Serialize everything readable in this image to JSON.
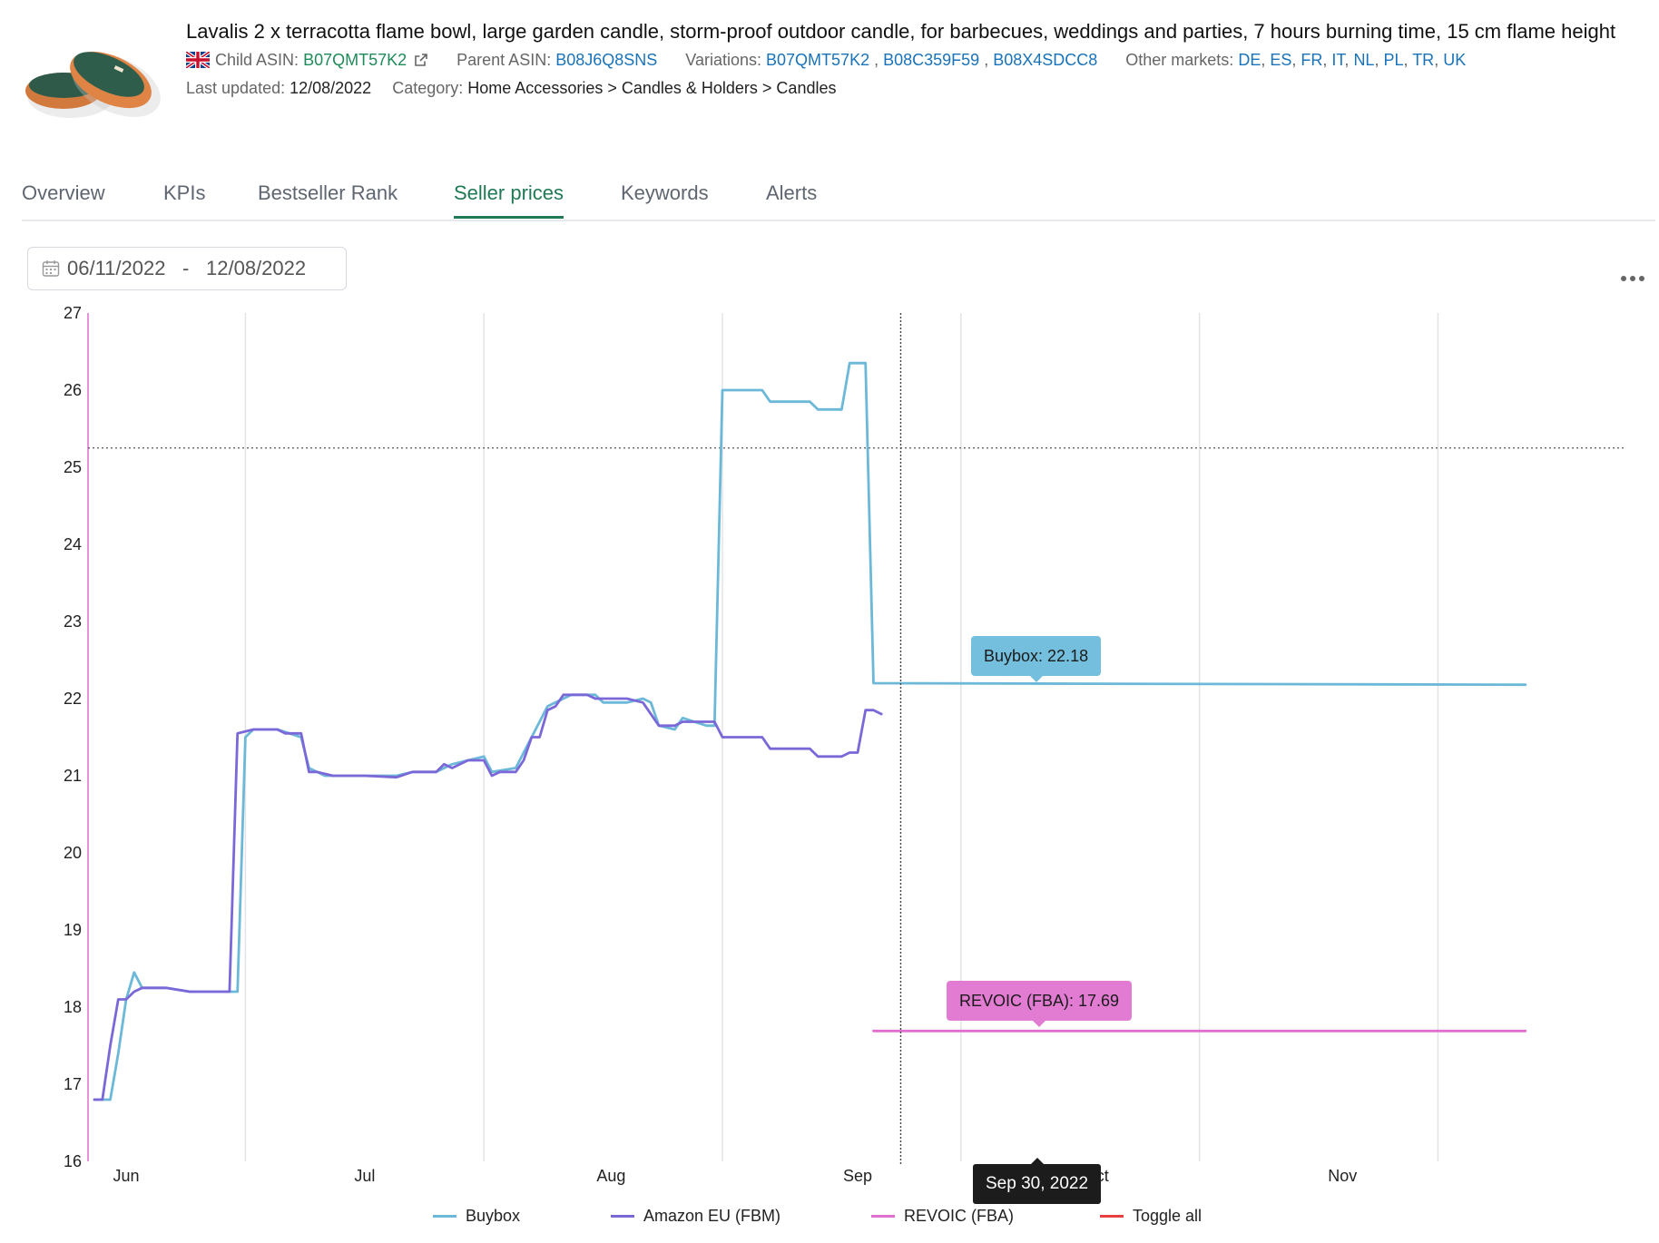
{
  "product": {
    "title": "Lavalis 2 x terracotta flame bowl, large garden candle, storm-proof outdoor candle, for barbecues, weddings and parties, 7 hours burning time, 15 cm flame height",
    "child_asin_label": "Child ASIN:",
    "child_asin": "B07QMT57K2",
    "parent_asin_label": "Parent ASIN:",
    "parent_asin": "B08J6Q8SNS",
    "variations_label": "Variations:",
    "variations": [
      "B07QMT57K2",
      "B08C359F59",
      "B08X4SDCC8"
    ],
    "other_markets_label": "Other markets:",
    "other_markets": [
      "DE",
      "ES",
      "FR",
      "IT",
      "NL",
      "PL",
      "TR",
      "UK"
    ],
    "last_updated_label": "Last updated:",
    "last_updated": "12/08/2022",
    "category_label": "Category:",
    "category": "Home Accessories > Candles & Holders > Candles"
  },
  "tabs": [
    "Overview",
    "KPIs",
    "Bestseller Rank",
    "Seller prices",
    "Keywords",
    "Alerts"
  ],
  "active_tab": "Seller prices",
  "date_range": {
    "start": "06/11/2022",
    "separator": "-",
    "end": "12/08/2022"
  },
  "tooltips": {
    "buybox": "Buybox: 22.18",
    "revoic": "REVOIC (FBA): 17.69",
    "date": "Sep 30, 2022"
  },
  "chart_data": {
    "type": "line",
    "ylim": [
      16,
      27
    ],
    "yticks": [
      16,
      17,
      18,
      19,
      20,
      21,
      22,
      23,
      24,
      25,
      26,
      27
    ],
    "xlabels": [
      "Jun",
      "Jul",
      "Aug",
      "Sep",
      "Oct",
      "Nov"
    ],
    "reference_line": 25.25,
    "hover_date": "Sep 30, 2022",
    "series": [
      {
        "name": "Buybox",
        "color": "#6cb8d8",
        "points": [
          [
            "06-11",
            16.8
          ],
          [
            "06-13",
            16.8
          ],
          [
            "06-14",
            17.4
          ],
          [
            "06-15",
            18.1
          ],
          [
            "06-16",
            18.45
          ],
          [
            "06-17",
            18.25
          ],
          [
            "06-20",
            18.25
          ],
          [
            "06-23",
            18.2
          ],
          [
            "06-29",
            18.2
          ],
          [
            "06-30",
            21.5
          ],
          [
            "07-01",
            21.6
          ],
          [
            "07-04",
            21.6
          ],
          [
            "07-07",
            21.5
          ],
          [
            "07-08",
            21.1
          ],
          [
            "07-10",
            21.0
          ],
          [
            "07-15",
            21.0
          ],
          [
            "07-19",
            21.0
          ],
          [
            "07-21",
            21.05
          ],
          [
            "07-24",
            21.05
          ],
          [
            "07-26",
            21.15
          ],
          [
            "07-28",
            21.2
          ],
          [
            "07-30",
            21.25
          ],
          [
            "07-31",
            21.05
          ],
          [
            "08-03",
            21.1
          ],
          [
            "08-04",
            21.3
          ],
          [
            "08-05",
            21.5
          ],
          [
            "08-07",
            21.9
          ],
          [
            "08-10",
            22.05
          ],
          [
            "08-13",
            22.05
          ],
          [
            "08-14",
            21.95
          ],
          [
            "08-17",
            21.95
          ],
          [
            "08-19",
            22.0
          ],
          [
            "08-20",
            21.95
          ],
          [
            "08-21",
            21.65
          ],
          [
            "08-23",
            21.6
          ],
          [
            "08-24",
            21.75
          ],
          [
            "08-27",
            21.65
          ],
          [
            "08-28",
            21.65
          ],
          [
            "08-29",
            26.0
          ],
          [
            "09-03",
            26.0
          ],
          [
            "09-04",
            25.85
          ],
          [
            "09-07",
            25.85
          ],
          [
            "09-09",
            25.85
          ],
          [
            "09-10",
            25.75
          ],
          [
            "09-13",
            25.75
          ],
          [
            "09-14",
            26.35
          ],
          [
            "09-16",
            26.35
          ],
          [
            "09-17",
            22.2
          ],
          [
            "12-08",
            22.18
          ]
        ]
      },
      {
        "name": "Amazon EU (FBM)",
        "color": "#7b68d8",
        "points": [
          [
            "06-11",
            16.8
          ],
          [
            "06-12",
            16.8
          ],
          [
            "06-13",
            17.5
          ],
          [
            "06-14",
            18.1
          ],
          [
            "06-15",
            18.1
          ],
          [
            "06-16",
            18.2
          ],
          [
            "06-17",
            18.25
          ],
          [
            "06-20",
            18.25
          ],
          [
            "06-23",
            18.2
          ],
          [
            "06-28",
            18.2
          ],
          [
            "06-29",
            21.55
          ],
          [
            "07-01",
            21.6
          ],
          [
            "07-04",
            21.6
          ],
          [
            "07-05",
            21.55
          ],
          [
            "07-07",
            21.55
          ],
          [
            "07-08",
            21.05
          ],
          [
            "07-09",
            21.05
          ],
          [
            "07-11",
            21.0
          ],
          [
            "07-15",
            21.0
          ],
          [
            "07-19",
            20.98
          ],
          [
            "07-21",
            21.05
          ],
          [
            "07-24",
            21.05
          ],
          [
            "07-25",
            21.15
          ],
          [
            "07-26",
            21.1
          ],
          [
            "07-28",
            21.2
          ],
          [
            "07-30",
            21.2
          ],
          [
            "07-31",
            21.0
          ],
          [
            "08-01",
            21.05
          ],
          [
            "08-03",
            21.05
          ],
          [
            "08-04",
            21.2
          ],
          [
            "08-05",
            21.5
          ],
          [
            "08-06",
            21.5
          ],
          [
            "08-07",
            21.85
          ],
          [
            "08-08",
            21.9
          ],
          [
            "08-09",
            22.05
          ],
          [
            "08-12",
            22.05
          ],
          [
            "08-13",
            22.0
          ],
          [
            "08-17",
            22.0
          ],
          [
            "08-19",
            21.95
          ],
          [
            "08-21",
            21.65
          ],
          [
            "08-23",
            21.65
          ],
          [
            "08-24",
            21.7
          ],
          [
            "08-25",
            21.7
          ],
          [
            "08-28",
            21.7
          ],
          [
            "08-29",
            21.5
          ],
          [
            "09-03",
            21.5
          ],
          [
            "09-04",
            21.35
          ],
          [
            "09-07",
            21.35
          ],
          [
            "09-09",
            21.35
          ],
          [
            "09-10",
            21.25
          ],
          [
            "09-13",
            21.25
          ],
          [
            "09-14",
            21.3
          ],
          [
            "09-15",
            21.3
          ],
          [
            "09-16",
            21.85
          ],
          [
            "09-17",
            21.85
          ],
          [
            "09-18",
            21.8
          ]
        ]
      },
      {
        "name": "REVOIC (FBA)",
        "color": "#e06fcf",
        "points": [
          [
            "09-17",
            17.69
          ],
          [
            "12-08",
            17.69
          ]
        ]
      }
    ],
    "legend": [
      "Buybox",
      "Amazon EU (FBM)",
      "REVOIC (FBA)",
      "Toggle all"
    ],
    "legend_colors": [
      "#6cb8d8",
      "#7b68d8",
      "#e06fcf",
      "#e84040"
    ]
  }
}
